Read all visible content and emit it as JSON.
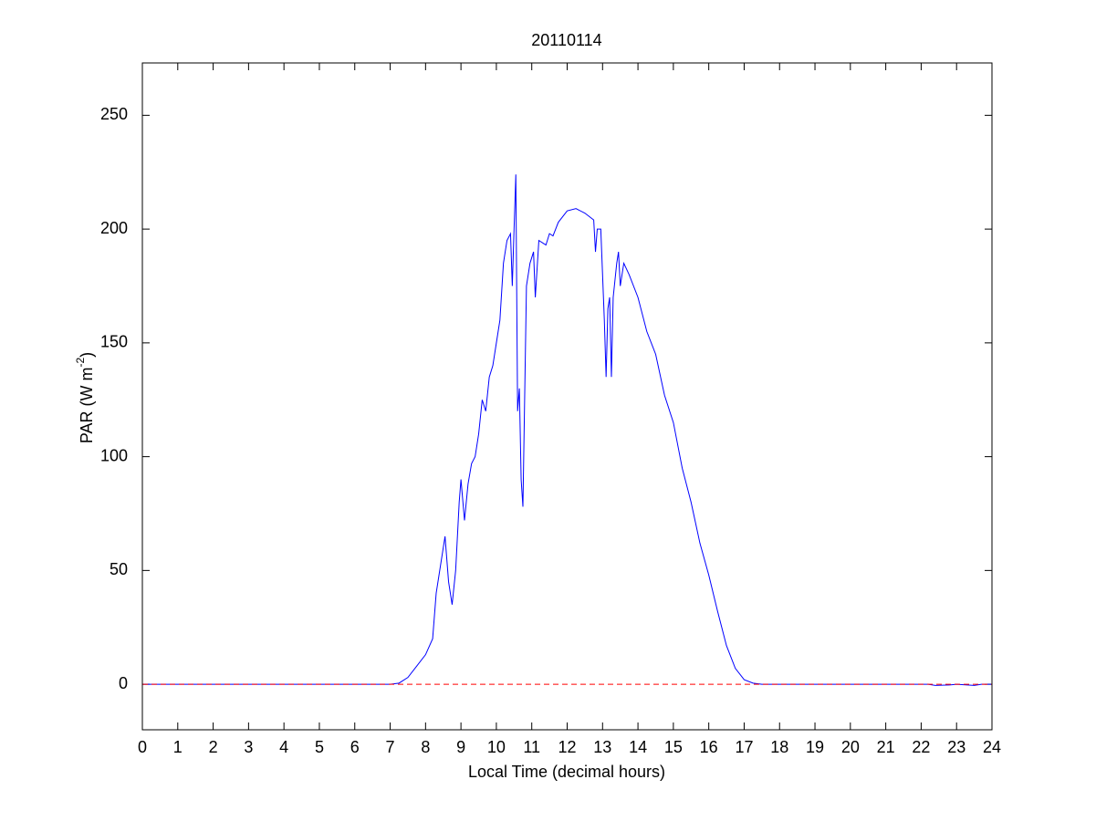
{
  "chart_data": {
    "type": "line",
    "title": "20110114",
    "xlabel": "Local Time (decimal hours)",
    "ylabel_parts": [
      "PAR (W m",
      "-2",
      ")"
    ],
    "xlim": [
      0,
      24
    ],
    "ylim": [
      -20,
      273
    ],
    "xticks": [
      0,
      1,
      2,
      3,
      4,
      5,
      6,
      7,
      8,
      9,
      10,
      11,
      12,
      13,
      14,
      15,
      16,
      17,
      18,
      19,
      20,
      21,
      22,
      23,
      24
    ],
    "yticks": [
      0,
      50,
      100,
      150,
      200,
      250
    ],
    "reference_line": {
      "value": 0,
      "color": "#ff0000",
      "style": "dashed"
    },
    "series": [
      {
        "color": "#0000ff",
        "x": [
          0,
          7,
          7.25,
          7.5,
          7.75,
          8,
          8.2,
          8.3,
          8.5,
          8.55,
          8.65,
          8.75,
          8.85,
          8.95,
          9.0,
          9.1,
          9.2,
          9.3,
          9.4,
          9.5,
          9.6,
          9.7,
          9.8,
          9.9,
          10.0,
          10.1,
          10.2,
          10.3,
          10.4,
          10.45,
          10.5,
          10.55,
          10.6,
          10.65,
          10.7,
          10.75,
          10.85,
          10.95,
          11.05,
          11.1,
          11.2,
          11.4,
          11.5,
          11.6,
          11.75,
          12,
          12.25,
          12.5,
          12.75,
          12.8,
          12.85,
          12.95,
          13.05,
          13.1,
          13.15,
          13.2,
          13.25,
          13.3,
          13.4,
          13.45,
          13.5,
          13.6,
          13.75,
          14,
          14.25,
          14.5,
          14.75,
          15,
          15.25,
          15.5,
          15.75,
          16,
          16.25,
          16.5,
          16.75,
          17,
          17.25,
          17.5,
          22.2,
          22.4,
          22.8,
          23,
          23.5,
          23.7,
          24
        ],
        "values": [
          0,
          0,
          0.5,
          3,
          8,
          13,
          20,
          40,
          60,
          65,
          45,
          35,
          50,
          80,
          90,
          72,
          88,
          97,
          100,
          110,
          125,
          120,
          135,
          140,
          150,
          160,
          185,
          195,
          198,
          175,
          200,
          224,
          120,
          130,
          90,
          78,
          175,
          185,
          190,
          170,
          195,
          193,
          198,
          197,
          203,
          208,
          209,
          207,
          204,
          190,
          200,
          200,
          160,
          135,
          165,
          170,
          135,
          170,
          185,
          190,
          175,
          185,
          180,
          170,
          155,
          145,
          127,
          115,
          95,
          80,
          62,
          48,
          32,
          17,
          7,
          2,
          0.5,
          0,
          0,
          -0.5,
          -0.3,
          0,
          -0.5,
          0,
          0
        ]
      }
    ]
  }
}
